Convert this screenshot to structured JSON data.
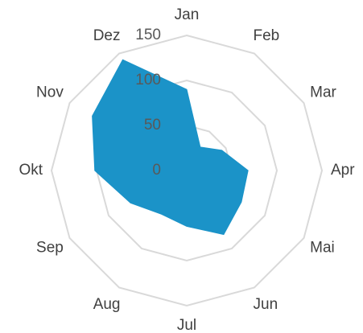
{
  "chart_data": {
    "type": "radar",
    "categories": [
      "Jan",
      "Feb",
      "Mar",
      "Apr",
      "Mai",
      "Jun",
      "Jul",
      "Aug",
      "Sep",
      "Okt",
      "Nov",
      "Dez"
    ],
    "values": [
      90,
      30,
      45,
      68,
      70,
      82,
      62,
      56,
      72,
      102,
      121,
      142
    ],
    "color": "#1b93c8",
    "ylim": [
      0,
      150
    ],
    "yticks": [
      0,
      50,
      100,
      150
    ],
    "grid": true
  }
}
